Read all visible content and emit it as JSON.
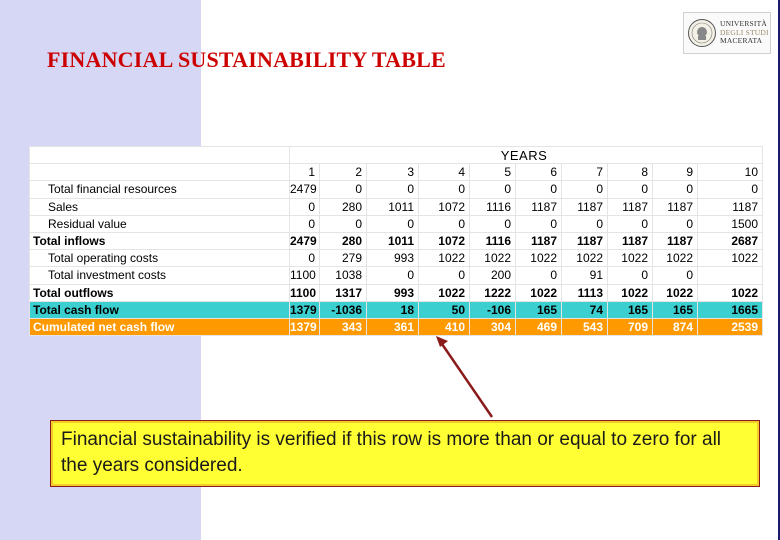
{
  "slide": {
    "title": "FINANCIAL SUSTAINABILITY TABLE",
    "logo": {
      "line1": "UNIVERSITÀ",
      "line2": "DEGLI STUDI",
      "line3": "MACERATA"
    },
    "note": "Financial sustainability is verified if this row is more than or equal to zero for all the years considered."
  },
  "table": {
    "header": "YEARS",
    "years": [
      "1",
      "2",
      "3",
      "4",
      "5",
      "6",
      "7",
      "8",
      "9",
      "10"
    ],
    "rows": [
      {
        "label": "Total financial resources",
        "values": [
          "2479",
          "0",
          "0",
          "0",
          "0",
          "0",
          "0",
          "0",
          "0",
          "0"
        ]
      },
      {
        "label": "Sales",
        "values": [
          "0",
          "280",
          "1011",
          "1072",
          "1116",
          "1187",
          "1187",
          "1187",
          "1187",
          "1187"
        ]
      },
      {
        "label": "Residual value",
        "values": [
          "0",
          "0",
          "0",
          "0",
          "0",
          "0",
          "0",
          "0",
          "0",
          "1500"
        ]
      },
      {
        "label": "Total inflows",
        "values": [
          "2479",
          "280",
          "1011",
          "1072",
          "1116",
          "1187",
          "1187",
          "1187",
          "1187",
          "2687"
        ]
      },
      {
        "label": "Total operating costs",
        "values": [
          "0",
          "279",
          "993",
          "1022",
          "1022",
          "1022",
          "1022",
          "1022",
          "1022",
          "1022"
        ]
      },
      {
        "label": "Total investment costs",
        "values": [
          "1100",
          "1038",
          "0",
          "0",
          "200",
          "0",
          "91",
          "0",
          "0",
          ""
        ]
      },
      {
        "label": "Total outflows",
        "values": [
          "1100",
          "1317",
          "993",
          "1022",
          "1222",
          "1022",
          "1113",
          "1022",
          "1022",
          "1022"
        ]
      },
      {
        "label": "Total cash flow",
        "values": [
          "1379",
          "-1036",
          "18",
          "50",
          "-106",
          "165",
          "74",
          "165",
          "165",
          "1665"
        ]
      },
      {
        "label": "Cumulated net cash flow",
        "values": [
          "1379",
          "343",
          "361",
          "410",
          "304",
          "469",
          "543",
          "709",
          "874",
          "2539"
        ]
      }
    ]
  },
  "colors": {
    "band": "#d6d6f5",
    "title": "#cc0000",
    "cash_row": "#3ccfcf",
    "cum_row": "#ff9900",
    "note_bg": "#ffff33",
    "arrow": "#8b1a1a"
  }
}
